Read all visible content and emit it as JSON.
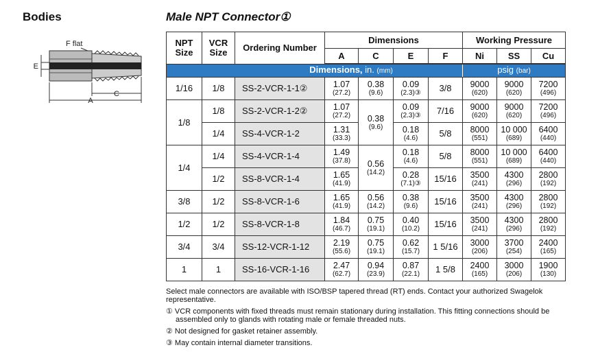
{
  "section": "Bodies",
  "title": "Male NPT Connector①",
  "diagram": {
    "labels": [
      "F flat",
      "E",
      "C",
      "A"
    ]
  },
  "table": {
    "headers": [
      "NPT Size",
      "VCR Size",
      "Ordering Number",
      "Dimensions",
      "A",
      "C",
      "E",
      "F",
      "Working Pressure",
      "Ni",
      "SS",
      "Cu"
    ],
    "units": {
      "dimensions": [
        "Dimensions,",
        "in.",
        "(mm)"
      ],
      "pressure": [
        "psig",
        "(bar)"
      ]
    },
    "rows": [
      [
        "1/16",
        "1/8",
        "SS-2-VCR-1-1②",
        [
          "1.07",
          "(27.2)"
        ],
        [
          "0.38",
          "(9.6)"
        ],
        [
          "0.09",
          "(2.3)③"
        ],
        "3/8",
        [
          "9000",
          "(620)"
        ],
        [
          "9000",
          "(620)"
        ],
        [
          "7200",
          "(496)"
        ]
      ],
      [
        "1/8",
        "1/8",
        "SS-2-VCR-1-2②",
        [
          "1.07",
          "(27.2)"
        ],
        [
          "0.38",
          "(9.6)"
        ],
        [
          "0.09",
          "(2.3)③"
        ],
        "7/16",
        [
          "9000",
          "(620)"
        ],
        [
          "9000",
          "(620)"
        ],
        [
          "7200",
          "(496)"
        ]
      ],
      [
        "1/4",
        "SS-4-VCR-1-2",
        [
          "1.31",
          "(33.3)"
        ],
        [
          "0.18",
          "(4.6)"
        ],
        "5/8",
        [
          "8000",
          "(551)"
        ],
        [
          "10 000",
          "(689)"
        ],
        [
          "6400",
          "(440)"
        ]
      ],
      [
        "1/4",
        "1/4",
        "SS-4-VCR-1-4",
        [
          "1.49",
          "(37.8)"
        ],
        [
          "0.56",
          "(14.2)"
        ],
        [
          "0.18",
          "(4.6)"
        ],
        "5/8",
        [
          "8000",
          "(551)"
        ],
        [
          "10 000",
          "(689)"
        ],
        [
          "6400",
          "(440)"
        ]
      ],
      [
        "1/2",
        "SS-8-VCR-1-4",
        [
          "1.65",
          "(41.9)"
        ],
        [
          "0.28",
          "(7.1)③"
        ],
        "15/16",
        [
          "3500",
          "(241)"
        ],
        [
          "4300",
          "(296)"
        ],
        [
          "2800",
          "(192)"
        ]
      ],
      [
        "3/8",
        "1/2",
        "SS-8-VCR-1-6",
        [
          "1.65",
          "(41.9)"
        ],
        [
          "0.56",
          "(14.2)"
        ],
        [
          "0.38",
          "(9.6)"
        ],
        "15/16",
        [
          "3500",
          "(241)"
        ],
        [
          "4300",
          "(296)"
        ],
        [
          "2800",
          "(192)"
        ]
      ],
      [
        "1/2",
        "1/2",
        "SS-8-VCR-1-8",
        [
          "1.84",
          "(46.7)"
        ],
        [
          "0.75",
          "(19.1)"
        ],
        [
          "0.40",
          "(10.2)"
        ],
        "15/16",
        [
          "3500",
          "(241)"
        ],
        [
          "4300",
          "(296)"
        ],
        [
          "2800",
          "(192)"
        ]
      ],
      [
        "3/4",
        "3/4",
        "SS-12-VCR-1-12",
        [
          "2.19",
          "(55.6)"
        ],
        [
          "0.75",
          "(19.1)"
        ],
        [
          "0.62",
          "(15.7)"
        ],
        "1 5/16",
        [
          "3000",
          "(206)"
        ],
        [
          "3700",
          "(254)"
        ],
        [
          "2400",
          "(165)"
        ]
      ],
      [
        "1",
        "1",
        "SS-16-VCR-1-16",
        [
          "2.47",
          "(62.7)"
        ],
        [
          "0.94",
          "(23.9)"
        ],
        [
          "0.87",
          "(22.1)"
        ],
        "1 5/8",
        [
          "2400",
          "(165)"
        ],
        [
          "3000",
          "(206)"
        ],
        [
          "1900",
          "(130)"
        ]
      ]
    ]
  },
  "note": "Select male connectors are available with ISO/BSP tapered thread (RT) ends. Contact your authorized Swagelok representative.",
  "footnotes": [
    "① VCR components with fixed threads must remain stationary during installation. This fitting connections should be assembled only to glands with rotating male or female threaded nuts.",
    "② Not designed for gasket retainer assembly.",
    "③ May contain internal diameter transitions."
  ]
}
